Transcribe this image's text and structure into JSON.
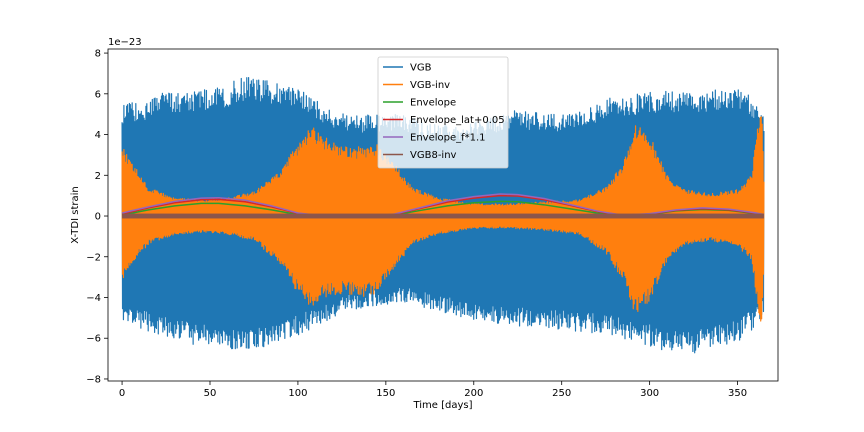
{
  "chart_data": {
    "type": "line",
    "xlabel": "Time [days]",
    "ylabel": "X-TDI strain",
    "y_offset_label": "1e−23",
    "xlim": [
      -8,
      373
    ],
    "ylim": [
      -8.1,
      8.2
    ],
    "xticks": [
      0,
      50,
      100,
      150,
      200,
      250,
      300,
      350
    ],
    "yticks": [
      -8,
      -6,
      -4,
      -2,
      0,
      2,
      4,
      6,
      8
    ],
    "xtick_labels": [
      "0",
      "50",
      "100",
      "150",
      "200",
      "250",
      "300",
      "350"
    ],
    "ytick_labels": [
      "−8",
      "−6",
      "−4",
      "−2",
      "0",
      "2",
      "4",
      "6",
      "8"
    ],
    "legend_position": "upper center",
    "grid": false,
    "series": [
      {
        "name": "VGB",
        "color": "#1f77b4",
        "style": "oscillating-band",
        "x": [
          0,
          10,
          25,
          40,
          55,
          70,
          85,
          100,
          115,
          130,
          145,
          160,
          175,
          190,
          205,
          220,
          235,
          250,
          265,
          280,
          295,
          310,
          325,
          340,
          350,
          358,
          363,
          365
        ],
        "upper": [
          5.5,
          5.6,
          6.1,
          6.2,
          6.3,
          6.9,
          6.6,
          6.3,
          5.4,
          4.9,
          5.0,
          5.0,
          4.6,
          4.4,
          4.7,
          5.2,
          5.1,
          5.0,
          5.4,
          5.9,
          6.0,
          6.2,
          6.1,
          6.2,
          6.4,
          5.8,
          5.2,
          5.0
        ],
        "lower": [
          -5.5,
          -5.5,
          -6.0,
          -6.3,
          -6.5,
          -6.6,
          -6.4,
          -5.9,
          -5.2,
          -4.6,
          -4.4,
          -4.2,
          -4.6,
          -4.9,
          -5.2,
          -5.4,
          -5.4,
          -5.6,
          -5.7,
          -5.9,
          -6.3,
          -6.7,
          -6.8,
          -6.4,
          -6.2,
          -5.6,
          -5.0,
          -4.8
        ]
      },
      {
        "name": "VGB-inv",
        "color": "#ff7f0e",
        "style": "oscillating-band",
        "x": [
          0,
          5,
          15,
          30,
          45,
          60,
          75,
          90,
          100,
          108,
          115,
          125,
          135,
          145,
          155,
          165,
          180,
          200,
          220,
          240,
          260,
          275,
          285,
          292,
          300,
          310,
          320,
          335,
          350,
          358,
          362,
          364,
          365
        ],
        "upper": [
          3.4,
          2.8,
          1.4,
          0.9,
          0.8,
          0.9,
          1.2,
          2.2,
          3.6,
          4.4,
          3.9,
          3.4,
          3.4,
          3.6,
          2.6,
          1.4,
          0.9,
          0.6,
          0.6,
          0.7,
          0.8,
          1.4,
          2.6,
          4.6,
          4.0,
          2.0,
          1.3,
          1.1,
          1.3,
          2.0,
          4.8,
          5.5,
          2.0
        ],
        "lower": [
          -3.2,
          -2.4,
          -1.4,
          -0.9,
          -0.8,
          -0.9,
          -1.2,
          -2.4,
          -3.8,
          -4.5,
          -4.0,
          -3.8,
          -4.0,
          -3.8,
          -2.6,
          -1.4,
          -0.9,
          -0.6,
          -0.6,
          -0.7,
          -0.9,
          -1.8,
          -3.2,
          -4.9,
          -4.2,
          -2.2,
          -1.4,
          -1.2,
          -1.5,
          -2.2,
          -4.8,
          -5.6,
          -2.0
        ]
      },
      {
        "name": "Envelope",
        "color": "#2ca02c",
        "style": "line",
        "x": [
          0,
          15,
          30,
          45,
          55,
          70,
          85,
          100,
          115,
          130,
          145,
          155,
          170,
          185,
          200,
          215,
          225,
          240,
          255,
          270,
          285,
          300,
          315,
          330,
          345,
          360,
          365
        ],
        "y": [
          0.05,
          0.3,
          0.5,
          0.62,
          0.62,
          0.5,
          0.3,
          0.07,
          0.0,
          0.0,
          0.0,
          0.05,
          0.28,
          0.5,
          0.65,
          0.72,
          0.7,
          0.55,
          0.35,
          0.15,
          0.02,
          0.08,
          0.25,
          0.32,
          0.28,
          0.12,
          0.05
        ]
      },
      {
        "name": "Envelope_lat+0.05",
        "color": "#d62728",
        "style": "line",
        "x": [
          0,
          15,
          30,
          45,
          55,
          70,
          85,
          100,
          115,
          130,
          145,
          155,
          170,
          185,
          200,
          215,
          225,
          240,
          255,
          270,
          285,
          300,
          315,
          330,
          345,
          360,
          365
        ],
        "y": [
          0.1,
          0.4,
          0.65,
          0.8,
          0.82,
          0.7,
          0.45,
          0.12,
          0.0,
          0.0,
          0.0,
          0.08,
          0.38,
          0.68,
          0.88,
          1.0,
          0.98,
          0.8,
          0.52,
          0.22,
          0.03,
          0.1,
          0.28,
          0.36,
          0.3,
          0.14,
          0.06
        ]
      },
      {
        "name": "Envelope_f*1.1",
        "color": "#9467bd",
        "style": "line",
        "x": [
          0,
          15,
          30,
          45,
          55,
          70,
          85,
          100,
          115,
          130,
          145,
          155,
          170,
          185,
          200,
          215,
          225,
          240,
          255,
          270,
          285,
          300,
          315,
          330,
          345,
          360,
          365
        ],
        "y": [
          0.15,
          0.45,
          0.72,
          0.88,
          0.9,
          0.78,
          0.5,
          0.15,
          0.0,
          0.0,
          0.0,
          0.1,
          0.42,
          0.75,
          0.95,
          1.08,
          1.05,
          0.86,
          0.56,
          0.25,
          0.04,
          0.12,
          0.3,
          0.4,
          0.34,
          0.16,
          0.07
        ]
      },
      {
        "name": "VGB8-inv",
        "color": "#8c564b",
        "style": "thick-band",
        "x": [
          0,
          365
        ],
        "upper": [
          0.12,
          0.12
        ],
        "lower": [
          -0.12,
          -0.12
        ]
      }
    ]
  }
}
